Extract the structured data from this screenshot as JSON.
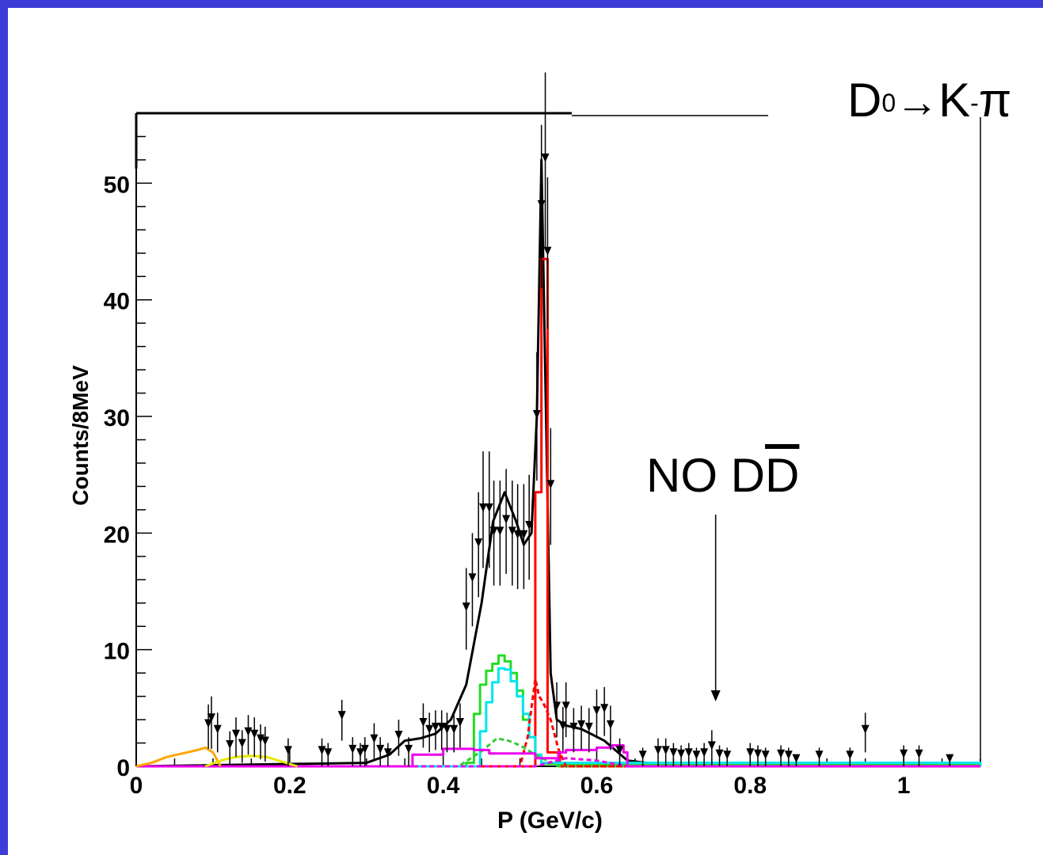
{
  "title": {
    "base": "D",
    "sup": "0",
    "arrow": "→",
    "product": "K",
    "product_sup": "-",
    "tail": "π"
  },
  "annotation": {
    "prefix": "NO D",
    "bar_letter": "D"
  },
  "chart_data": {
    "type": "line",
    "title": "D⁰→K⁻π⁺",
    "xlabel": "P (GeV/c)",
    "ylabel": "Counts/8MeV",
    "xlim": [
      0,
      1.1
    ],
    "ylim": [
      0,
      56
    ],
    "x_ticks": [
      0,
      0.2,
      0.4,
      0.6,
      0.8,
      1
    ],
    "x_tick_labels": [
      "0",
      "0.2",
      "0.4",
      "0.6",
      "0.8",
      "1"
    ],
    "y_ticks": [
      0,
      10,
      20,
      30,
      40,
      50
    ],
    "y_tick_labels": [
      "0",
      "10",
      "20",
      "30",
      "40",
      "50"
    ],
    "annotation_arrow_x": 0.755,
    "series": [
      {
        "name": "",
        "style": "smooth",
        "color": "#000000",
        "x": [
          0,
          0.3,
          0.33,
          0.35,
          0.37,
          0.39,
          0.41,
          0.43,
          0.45,
          0.465,
          0.48,
          0.495,
          0.505,
          0.515,
          0.522,
          0.528,
          0.534,
          0.54,
          0.548,
          0.56,
          0.58,
          0.61,
          0.64,
          0.7,
          1.1
        ],
        "y": [
          0,
          0.3,
          1,
          2.2,
          2.4,
          2.8,
          4,
          7,
          14,
          21,
          23.5,
          21,
          19,
          20,
          30,
          52,
          30,
          8,
          4,
          3.5,
          3.2,
          2.2,
          0.5,
          0,
          0
        ]
      },
      {
        "name": "",
        "style": "step",
        "color": "#ff0000",
        "x": [
          0,
          0.5,
          0.52,
          0.528,
          0.536,
          0.544,
          0.552,
          0.56,
          1.1
        ],
        "y": [
          0,
          0,
          23.5,
          43.5,
          1.2,
          1.2,
          0,
          0,
          0
        ]
      },
      {
        "name": "",
        "style": "step",
        "color": "#22dd22",
        "x": [
          0,
          0.35,
          0.43,
          0.44,
          0.448,
          0.456,
          0.464,
          0.472,
          0.48,
          0.488,
          0.496,
          0.504,
          0.512,
          0.52,
          0.528,
          1.1
        ],
        "y": [
          0,
          0,
          0.3,
          4.5,
          7,
          8.2,
          8.8,
          9.5,
          9,
          8,
          6.5,
          4,
          2.5,
          0.8,
          0.2,
          0
        ]
      },
      {
        "name": "",
        "style": "step",
        "color": "#00e5ee",
        "x": [
          0,
          0.44,
          0.448,
          0.456,
          0.464,
          0.472,
          0.48,
          0.488,
          0.496,
          0.504,
          0.512,
          0.52,
          0.528,
          1.1
        ],
        "y": [
          0,
          0,
          3,
          5.5,
          7.2,
          8.4,
          8.3,
          7.3,
          6,
          4.5,
          2.5,
          1,
          0.3,
          0
        ]
      },
      {
        "name": "",
        "style": "dashed",
        "color": "#33cc33",
        "x": [
          0,
          0.42,
          0.45,
          0.47,
          0.485,
          0.5,
          0.52,
          0.55,
          1.1
        ],
        "y": [
          0,
          0,
          1.3,
          2.4,
          2.2,
          1.8,
          1,
          0,
          0
        ]
      },
      {
        "name": "",
        "style": "dashed",
        "color": "#ff0000",
        "x": [
          0,
          0.5,
          0.51,
          0.52,
          0.525,
          0.53,
          0.54,
          0.55,
          0.56,
          1.1
        ],
        "y": [
          0,
          0,
          2.5,
          7.5,
          6,
          5.5,
          4,
          1.5,
          0,
          0
        ]
      },
      {
        "name": "",
        "style": "step",
        "color": "#ee00ee",
        "x": [
          0,
          0.35,
          0.36,
          0.4,
          0.44,
          0.46,
          0.52,
          0.55,
          0.56,
          0.6,
          0.62,
          0.635,
          0.64,
          1.1
        ],
        "y": [
          0,
          0,
          1,
          1.5,
          1.4,
          1.1,
          0.7,
          1.2,
          1.4,
          1.6,
          1.8,
          1.2,
          0,
          0
        ]
      },
      {
        "name": "",
        "style": "dashed",
        "color": "#ee00ee",
        "x": [
          0,
          0.52,
          0.56,
          0.6,
          0.64,
          1.1
        ],
        "y": [
          0,
          0,
          0.7,
          0.5,
          0,
          0
        ]
      },
      {
        "name": "",
        "style": "smooth",
        "color": "#ffa500",
        "x": [
          0,
          0.02,
          0.04,
          0.06,
          0.08,
          0.09,
          0.1,
          0.11
        ],
        "y": [
          0,
          0.3,
          0.8,
          1.1,
          1.4,
          1.6,
          1.2,
          0
        ]
      },
      {
        "name": "",
        "style": "smooth",
        "color": "#e8e800",
        "x": [
          0.09,
          0.11,
          0.13,
          0.15,
          0.17,
          0.19,
          0.21
        ],
        "y": [
          0,
          0.5,
          0.8,
          0.9,
          0.8,
          0.4,
          0
        ]
      },
      {
        "name": "",
        "style": "points",
        "color": "#000000",
        "x": [
          0.094,
          0.098,
          0.106,
          0.122,
          0.13,
          0.138,
          0.146,
          0.154,
          0.162,
          0.168,
          0.198,
          0.242,
          0.25,
          0.268,
          0.282,
          0.292,
          0.298,
          0.31,
          0.318,
          0.328,
          0.342,
          0.355,
          0.374,
          0.382,
          0.39,
          0.398,
          0.405,
          0.414,
          0.422,
          0.43,
          0.438,
          0.446,
          0.452,
          0.46,
          0.466,
          0.474,
          0.482,
          0.49,
          0.497,
          0.505,
          0.512,
          0.522,
          0.528,
          0.533,
          0.536,
          0.54,
          0.548,
          0.556,
          0.56,
          0.57,
          0.58,
          0.59,
          0.6,
          0.61,
          0.618,
          0.63,
          0.66,
          0.68,
          0.69,
          0.7,
          0.71,
          0.72,
          0.73,
          0.74,
          0.75,
          0.76,
          0.77,
          0.8,
          0.81,
          0.82,
          0.84,
          0.85,
          0.86,
          0.89,
          0.93,
          0.95,
          1.0,
          1.02,
          1.06
        ],
        "y": [
          3.5,
          4,
          3,
          1.7,
          2.6,
          1.8,
          2.8,
          2.6,
          2.2,
          2,
          1.2,
          1.2,
          1,
          4.2,
          1.3,
          1,
          1.3,
          2.2,
          1.3,
          1,
          2.5,
          1.3,
          3.6,
          3,
          3.2,
          3.2,
          3,
          3,
          3.6,
          13.5,
          16,
          19,
          22,
          22,
          20,
          20,
          21,
          20,
          19.7,
          19.7,
          20.5,
          30,
          48,
          52,
          44,
          24,
          5,
          3.3,
          5,
          3.2,
          3.4,
          3.2,
          4.6,
          4.8,
          3.4,
          1.2,
          0.8,
          1.2,
          1.2,
          1,
          0.9,
          1,
          0.8,
          1,
          1.6,
          0.9,
          0.8,
          1,
          0.9,
          0.8,
          0.9,
          0.8,
          0.5,
          0.8,
          0.8,
          3,
          0.9,
          0.9,
          0.5
        ],
        "err_lo": [
          2,
          2.5,
          1.8,
          1.5,
          1.8,
          1.5,
          1.8,
          1.8,
          1.6,
          1.6,
          1.2,
          1.2,
          1,
          2,
          1.3,
          1,
          1.3,
          1.6,
          1.3,
          1,
          1.6,
          1.3,
          2,
          1.8,
          1.8,
          1.8,
          1.8,
          1.8,
          2,
          3.5,
          4,
          4.5,
          5,
          5,
          4.5,
          4.5,
          4.5,
          4.5,
          4.5,
          4.5,
          4.5,
          5.5,
          7,
          7.5,
          6.5,
          5,
          2.5,
          2,
          2.5,
          2,
          2,
          2,
          2.2,
          2.2,
          2,
          1.2,
          0.8,
          1.2,
          1.2,
          1,
          0.9,
          1,
          0.8,
          1,
          1.5,
          0.9,
          0.8,
          1,
          0.9,
          0.8,
          0.9,
          0.8,
          0.5,
          0.8,
          0.8,
          1.8,
          0.9,
          0.9,
          0.5
        ],
        "err_hi": [
          1.8,
          2,
          1.6,
          1.3,
          1.6,
          1.3,
          1.6,
          1.6,
          1.4,
          1.4,
          1.2,
          1.2,
          1,
          1.5,
          1.2,
          1,
          1.2,
          1.5,
          1.2,
          1,
          1.5,
          1.2,
          1.8,
          1.6,
          1.6,
          1.6,
          1.6,
          1.6,
          1.8,
          3.5,
          4,
          4.5,
          5,
          5,
          4.5,
          4.5,
          4.5,
          4.5,
          4.5,
          4.5,
          4.5,
          5.5,
          7,
          7.5,
          6.5,
          5,
          2.2,
          1.8,
          2.2,
          1.8,
          1.8,
          1.8,
          2,
          2,
          1.8,
          1.2,
          0.8,
          1.2,
          1.2,
          1,
          0.9,
          1,
          0.8,
          1,
          1.5,
          0.9,
          0.8,
          1,
          0.9,
          0.8,
          0.9,
          0.8,
          0.5,
          0.8,
          0.8,
          1.6,
          0.9,
          0.9,
          0.5
        ]
      }
    ]
  }
}
